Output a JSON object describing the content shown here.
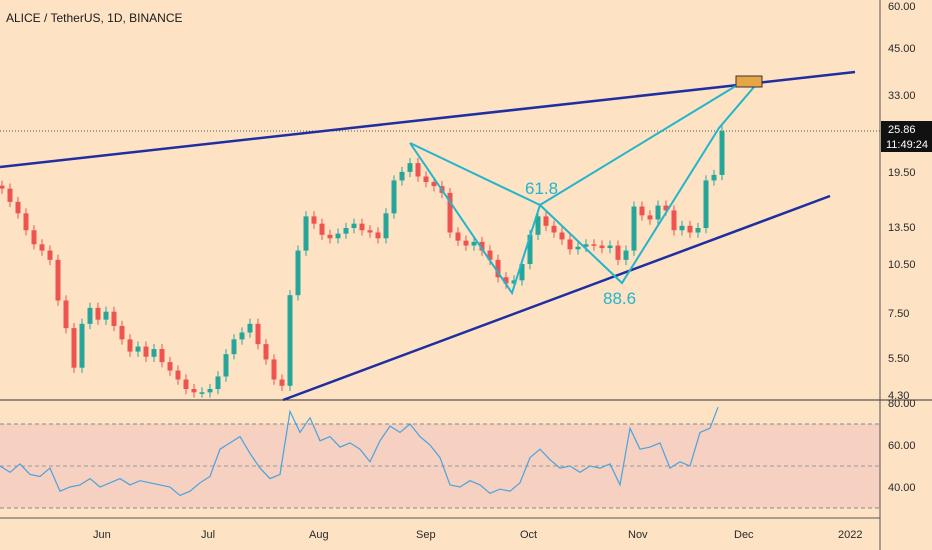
{
  "header": {
    "title": "ALICE / TetherUS, 1D, BINANCE"
  },
  "price_axis": {
    "ticks": [
      "60.00",
      "45.00",
      "33.00",
      "25.86",
      "19.50",
      "13.50",
      "10.50",
      "7.50",
      "5.50",
      "4.30"
    ],
    "current_price": "25.86",
    "countdown": "11:49:24"
  },
  "rsi_axis": {
    "ticks": [
      "80.00",
      "60.00",
      "40.00"
    ]
  },
  "time_axis": {
    "ticks": [
      "Jun",
      "Jul",
      "Aug",
      "Sep",
      "Oct",
      "Nov",
      "Dec",
      "2022"
    ]
  },
  "annotations": {
    "fib_1": "61.8",
    "fib_2": "88.6"
  },
  "colors": {
    "background": "#fde2c4",
    "up_candle": "#26a69a",
    "down_candle": "#ef5350",
    "channel": "#1f2ea0",
    "harmonic": "#22b5cc",
    "rsi_line": "#4aa3df",
    "rsi_band": "#f6d0c0",
    "target_box": "#e8a545"
  },
  "chart_data": [
    {
      "type": "candlestick",
      "title": "ALICE / TetherUS, 1D, BINANCE",
      "xlabel": "",
      "ylabel": "",
      "scale": "log",
      "ylim": [
        4.3,
        60
      ],
      "x_ticks": [
        "Jun",
        "Jul",
        "Aug",
        "Sep",
        "Oct",
        "Nov",
        "Dec",
        "2022"
      ],
      "last_price": 25.86,
      "harmonic_pattern": {
        "points": [
          {
            "date": "2021-09-01",
            "price": 21.6
          },
          {
            "date": "2021-09-28",
            "price": 8.9
          },
          {
            "date": "2021-10-05",
            "price": 15.1
          },
          {
            "date": "2021-10-28",
            "price": 9.4
          },
          {
            "date": "2021-11-24",
            "price": 25.9
          },
          {
            "date": "2021-12-01",
            "price": 37.5
          }
        ],
        "labels": [
          {
            "text": "61.8",
            "date": "2021-10-05",
            "price": 15.1
          },
          {
            "text": "88.6",
            "date": "2021-10-28",
            "price": 9.4
          }
        ]
      },
      "channel_upper": [
        {
          "date": "2021-05-15",
          "price": 18.5
        },
        {
          "date": "2021-12-11",
          "price": 38.5
        }
      ],
      "channel_lower": [
        {
          "date": "2021-07-20",
          "price": 4.3
        },
        {
          "date": "2021-12-10",
          "price": 17.0
        }
      ],
      "closes": [
        {
          "x": 0,
          "close": 17.5
        },
        {
          "x": 8,
          "close": 16.0
        },
        {
          "x": 16,
          "close": 14.8
        },
        {
          "x": 24,
          "close": 13.2
        },
        {
          "x": 32,
          "close": 12.0
        },
        {
          "x": 40,
          "close": 11.5
        },
        {
          "x": 48,
          "close": 10.8
        },
        {
          "x": 56,
          "close": 8.2
        },
        {
          "x": 64,
          "close": 6.8
        },
        {
          "x": 72,
          "close": 5.2
        },
        {
          "x": 80,
          "close": 7.0
        },
        {
          "x": 88,
          "close": 7.8
        },
        {
          "x": 96,
          "close": 7.2
        },
        {
          "x": 104,
          "close": 7.6
        },
        {
          "x": 112,
          "close": 6.9
        },
        {
          "x": 120,
          "close": 6.3
        },
        {
          "x": 128,
          "close": 5.8
        },
        {
          "x": 136,
          "close": 6.0
        },
        {
          "x": 144,
          "close": 5.6
        },
        {
          "x": 152,
          "close": 5.9
        },
        {
          "x": 160,
          "close": 5.4
        },
        {
          "x": 168,
          "close": 5.1
        },
        {
          "x": 176,
          "close": 4.8
        },
        {
          "x": 184,
          "close": 4.5
        },
        {
          "x": 192,
          "close": 4.4
        },
        {
          "x": 200,
          "close": 4.4
        },
        {
          "x": 208,
          "close": 4.5
        },
        {
          "x": 216,
          "close": 4.9
        },
        {
          "x": 224,
          "close": 5.7
        },
        {
          "x": 232,
          "close": 6.3
        },
        {
          "x": 240,
          "close": 6.6
        },
        {
          "x": 248,
          "close": 7.0
        },
        {
          "x": 256,
          "close": 6.1
        },
        {
          "x": 264,
          "close": 5.5
        },
        {
          "x": 272,
          "close": 4.8
        },
        {
          "x": 280,
          "close": 4.6
        },
        {
          "x": 288,
          "close": 8.5
        },
        {
          "x": 296,
          "close": 11.5
        },
        {
          "x": 304,
          "close": 14.5
        },
        {
          "x": 312,
          "close": 13.8
        },
        {
          "x": 320,
          "close": 12.8
        },
        {
          "x": 328,
          "close": 12.5
        },
        {
          "x": 336,
          "close": 12.9
        },
        {
          "x": 344,
          "close": 13.4
        },
        {
          "x": 352,
          "close": 13.8
        },
        {
          "x": 360,
          "close": 13.2
        },
        {
          "x": 368,
          "close": 13.0
        },
        {
          "x": 376,
          "close": 12.5
        },
        {
          "x": 384,
          "close": 14.8
        },
        {
          "x": 392,
          "close": 18.5
        },
        {
          "x": 400,
          "close": 19.6
        },
        {
          "x": 408,
          "close": 20.8
        },
        {
          "x": 416,
          "close": 19.0
        },
        {
          "x": 424,
          "close": 18.3
        },
        {
          "x": 432,
          "close": 17.8
        },
        {
          "x": 440,
          "close": 17.0
        },
        {
          "x": 448,
          "close": 13.0
        },
        {
          "x": 456,
          "close": 12.3
        },
        {
          "x": 464,
          "close": 11.9
        },
        {
          "x": 472,
          "close": 12.2
        },
        {
          "x": 480,
          "close": 11.5
        },
        {
          "x": 488,
          "close": 10.8
        },
        {
          "x": 496,
          "close": 9.6
        },
        {
          "x": 504,
          "close": 9.2
        },
        {
          "x": 512,
          "close": 9.4
        },
        {
          "x": 520,
          "close": 10.5
        },
        {
          "x": 528,
          "close": 12.8
        },
        {
          "x": 536,
          "close": 14.5
        },
        {
          "x": 544,
          "close": 13.6
        },
        {
          "x": 552,
          "close": 13.0
        },
        {
          "x": 560,
          "close": 12.4
        },
        {
          "x": 568,
          "close": 11.6
        },
        {
          "x": 576,
          "close": 11.8
        },
        {
          "x": 584,
          "close": 12.0
        },
        {
          "x": 592,
          "close": 11.9
        },
        {
          "x": 600,
          "close": 11.7
        },
        {
          "x": 608,
          "close": 11.9
        },
        {
          "x": 616,
          "close": 10.8
        },
        {
          "x": 624,
          "close": 11.5
        },
        {
          "x": 632,
          "close": 15.5
        },
        {
          "x": 640,
          "close": 14.6
        },
        {
          "x": 648,
          "close": 14.2
        },
        {
          "x": 656,
          "close": 15.6
        },
        {
          "x": 664,
          "close": 15.1
        },
        {
          "x": 672,
          "close": 13.2
        },
        {
          "x": 680,
          "close": 13.6
        },
        {
          "x": 688,
          "close": 13.0
        },
        {
          "x": 696,
          "close": 13.4
        },
        {
          "x": 704,
          "close": 18.5
        },
        {
          "x": 712,
          "close": 19.2
        },
        {
          "x": 720,
          "close": 25.86
        }
      ]
    },
    {
      "type": "line",
      "title": "RSI",
      "ylim": [
        28,
        82
      ],
      "y_ticks": [
        80,
        60,
        40
      ],
      "band": [
        30,
        70
      ],
      "midline": 50,
      "values": [
        {
          "x": 0,
          "y": 50
        },
        {
          "x": 10,
          "y": 47
        },
        {
          "x": 20,
          "y": 51
        },
        {
          "x": 30,
          "y": 46
        },
        {
          "x": 40,
          "y": 45
        },
        {
          "x": 50,
          "y": 49
        },
        {
          "x": 60,
          "y": 38
        },
        {
          "x": 70,
          "y": 40
        },
        {
          "x": 80,
          "y": 41
        },
        {
          "x": 90,
          "y": 44
        },
        {
          "x": 100,
          "y": 40
        },
        {
          "x": 110,
          "y": 42
        },
        {
          "x": 120,
          "y": 44
        },
        {
          "x": 130,
          "y": 41
        },
        {
          "x": 140,
          "y": 43
        },
        {
          "x": 150,
          "y": 42
        },
        {
          "x": 160,
          "y": 41
        },
        {
          "x": 170,
          "y": 40
        },
        {
          "x": 180,
          "y": 36
        },
        {
          "x": 190,
          "y": 38
        },
        {
          "x": 200,
          "y": 42
        },
        {
          "x": 210,
          "y": 45
        },
        {
          "x": 220,
          "y": 58
        },
        {
          "x": 230,
          "y": 61
        },
        {
          "x": 240,
          "y": 64
        },
        {
          "x": 250,
          "y": 56
        },
        {
          "x": 260,
          "y": 49
        },
        {
          "x": 270,
          "y": 44
        },
        {
          "x": 280,
          "y": 46
        },
        {
          "x": 290,
          "y": 76
        },
        {
          "x": 300,
          "y": 66
        },
        {
          "x": 310,
          "y": 73
        },
        {
          "x": 320,
          "y": 62
        },
        {
          "x": 330,
          "y": 64
        },
        {
          "x": 340,
          "y": 59
        },
        {
          "x": 350,
          "y": 61
        },
        {
          "x": 360,
          "y": 58
        },
        {
          "x": 370,
          "y": 52
        },
        {
          "x": 380,
          "y": 62
        },
        {
          "x": 390,
          "y": 69
        },
        {
          "x": 400,
          "y": 66
        },
        {
          "x": 410,
          "y": 70
        },
        {
          "x": 420,
          "y": 64
        },
        {
          "x": 430,
          "y": 60
        },
        {
          "x": 440,
          "y": 54
        },
        {
          "x": 450,
          "y": 41
        },
        {
          "x": 460,
          "y": 40
        },
        {
          "x": 470,
          "y": 43
        },
        {
          "x": 480,
          "y": 41
        },
        {
          "x": 490,
          "y": 37
        },
        {
          "x": 500,
          "y": 39
        },
        {
          "x": 510,
          "y": 38
        },
        {
          "x": 520,
          "y": 42
        },
        {
          "x": 530,
          "y": 54
        },
        {
          "x": 540,
          "y": 58
        },
        {
          "x": 550,
          "y": 53
        },
        {
          "x": 560,
          "y": 49
        },
        {
          "x": 570,
          "y": 50
        },
        {
          "x": 580,
          "y": 47
        },
        {
          "x": 590,
          "y": 50
        },
        {
          "x": 600,
          "y": 49
        },
        {
          "x": 610,
          "y": 51
        },
        {
          "x": 620,
          "y": 41
        },
        {
          "x": 630,
          "y": 68
        },
        {
          "x": 640,
          "y": 58
        },
        {
          "x": 650,
          "y": 59
        },
        {
          "x": 660,
          "y": 61
        },
        {
          "x": 670,
          "y": 49
        },
        {
          "x": 680,
          "y": 52
        },
        {
          "x": 690,
          "y": 50
        },
        {
          "x": 700,
          "y": 66
        },
        {
          "x": 710,
          "y": 68
        },
        {
          "x": 718,
          "y": 78
        }
      ]
    }
  ]
}
